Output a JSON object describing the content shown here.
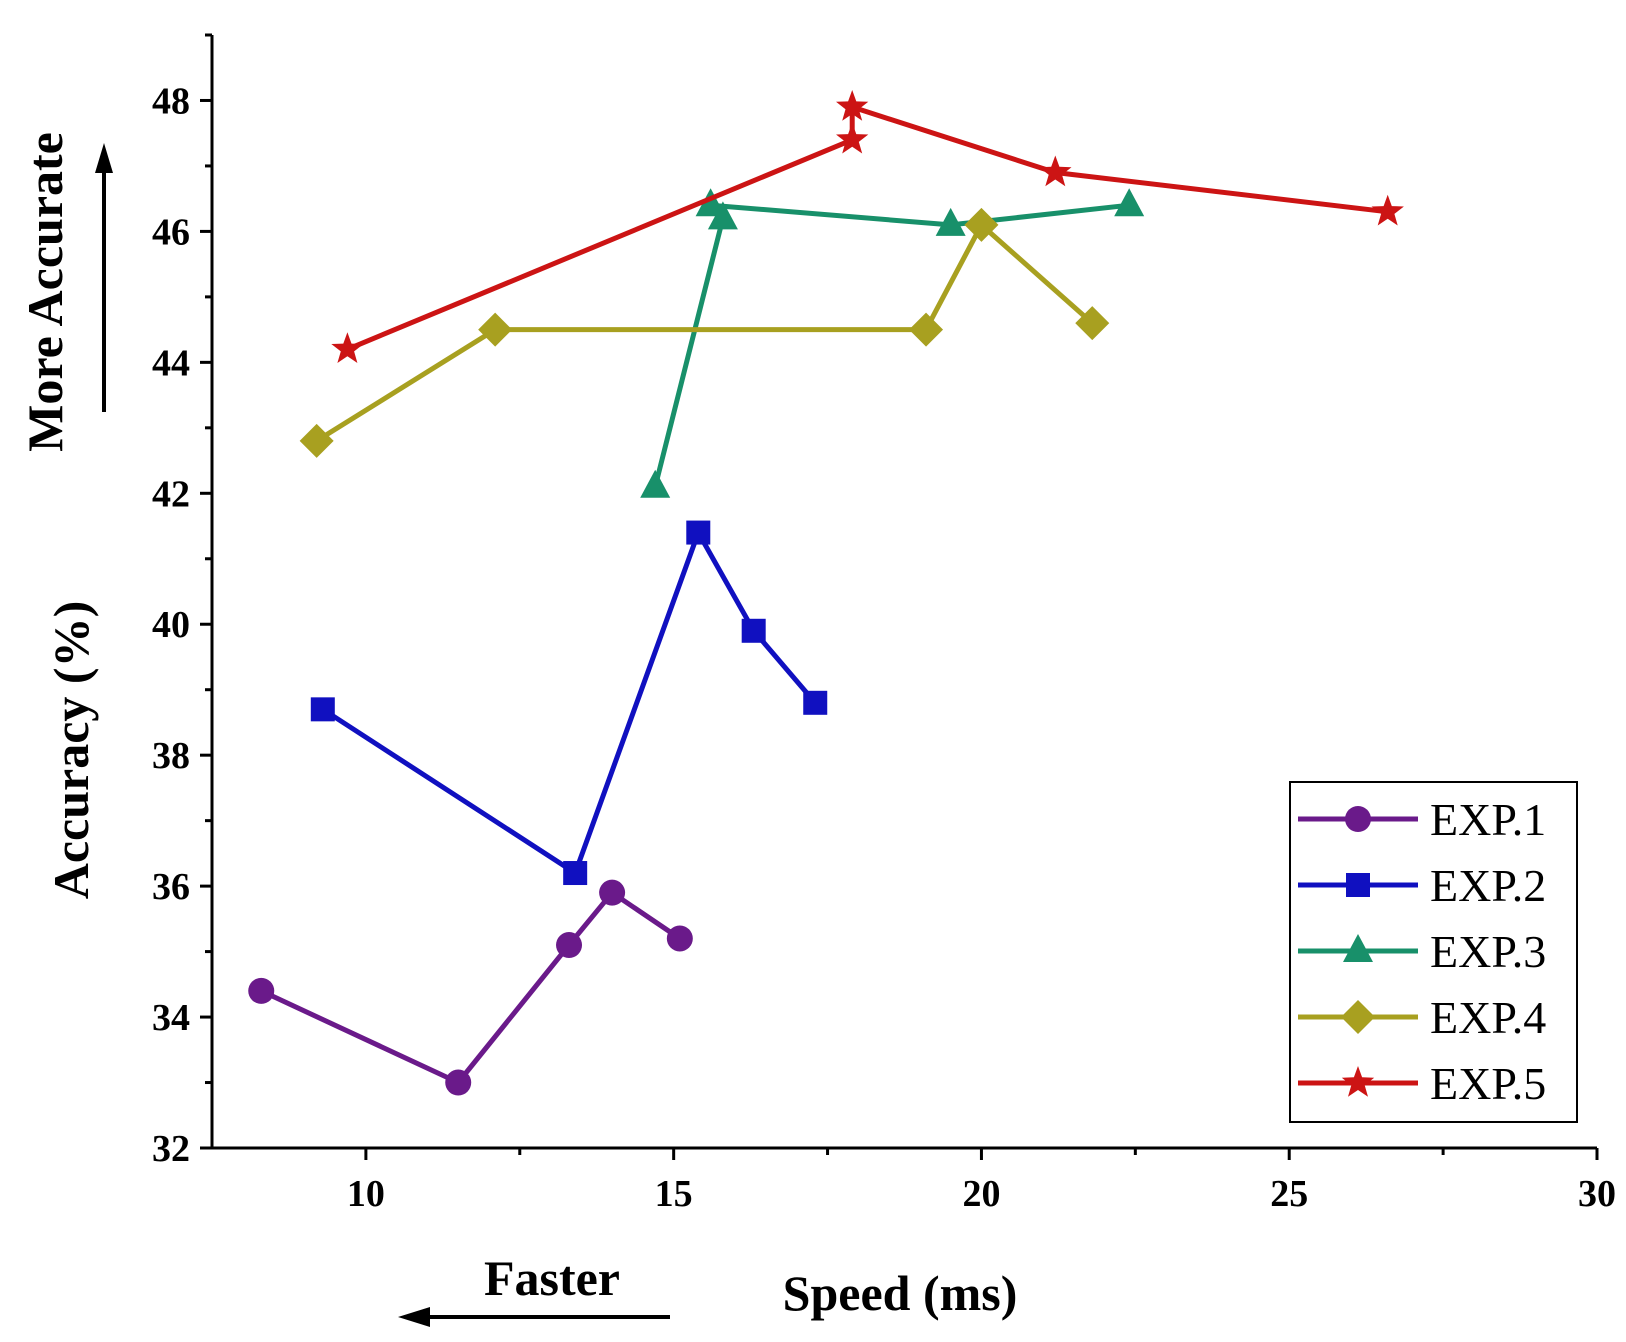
{
  "chart_data": {
    "type": "line",
    "xlabel": "Speed (ms)",
    "ylabel": "Accuracy (%)",
    "xlim": [
      7.5,
      30
    ],
    "ylim": [
      32,
      49
    ],
    "xticks": [
      10,
      15,
      20,
      25,
      30
    ],
    "yticks": [
      32,
      34,
      36,
      38,
      40,
      42,
      44,
      46,
      48
    ],
    "annotations": {
      "faster": "Faster",
      "more_accurate": "More Accurate"
    },
    "legend_position": "bottom-right",
    "series": [
      {
        "name": "EXP.1",
        "color": "#6a1a8a",
        "marker": "circle",
        "points": [
          [
            8.3,
            34.4
          ],
          [
            11.5,
            33.0
          ],
          [
            13.3,
            35.1
          ],
          [
            14.0,
            35.9
          ],
          [
            15.1,
            35.2
          ]
        ]
      },
      {
        "name": "EXP.2",
        "color": "#1010c0",
        "marker": "square",
        "points": [
          [
            9.3,
            38.7
          ],
          [
            13.4,
            36.2
          ],
          [
            15.4,
            41.4
          ],
          [
            16.3,
            39.9
          ],
          [
            17.3,
            38.8
          ]
        ]
      },
      {
        "name": "EXP.3",
        "color": "#18906a",
        "marker": "triangle",
        "points": [
          [
            14.7,
            42.1
          ],
          [
            15.8,
            46.2
          ],
          [
            15.6,
            46.4
          ],
          [
            19.5,
            46.1
          ],
          [
            22.4,
            46.4
          ]
        ]
      },
      {
        "name": "EXP.4",
        "color": "#a8a020",
        "marker": "diamond",
        "points": [
          [
            9.2,
            42.8
          ],
          [
            12.1,
            44.5
          ],
          [
            19.1,
            44.5
          ],
          [
            20.0,
            46.1
          ],
          [
            21.8,
            44.6
          ]
        ]
      },
      {
        "name": "EXP.5",
        "color": "#cc1414",
        "marker": "star",
        "points": [
          [
            9.7,
            44.2
          ],
          [
            17.9,
            47.4
          ],
          [
            17.9,
            47.9
          ],
          [
            21.2,
            46.9
          ],
          [
            26.6,
            46.3
          ]
        ]
      }
    ]
  }
}
